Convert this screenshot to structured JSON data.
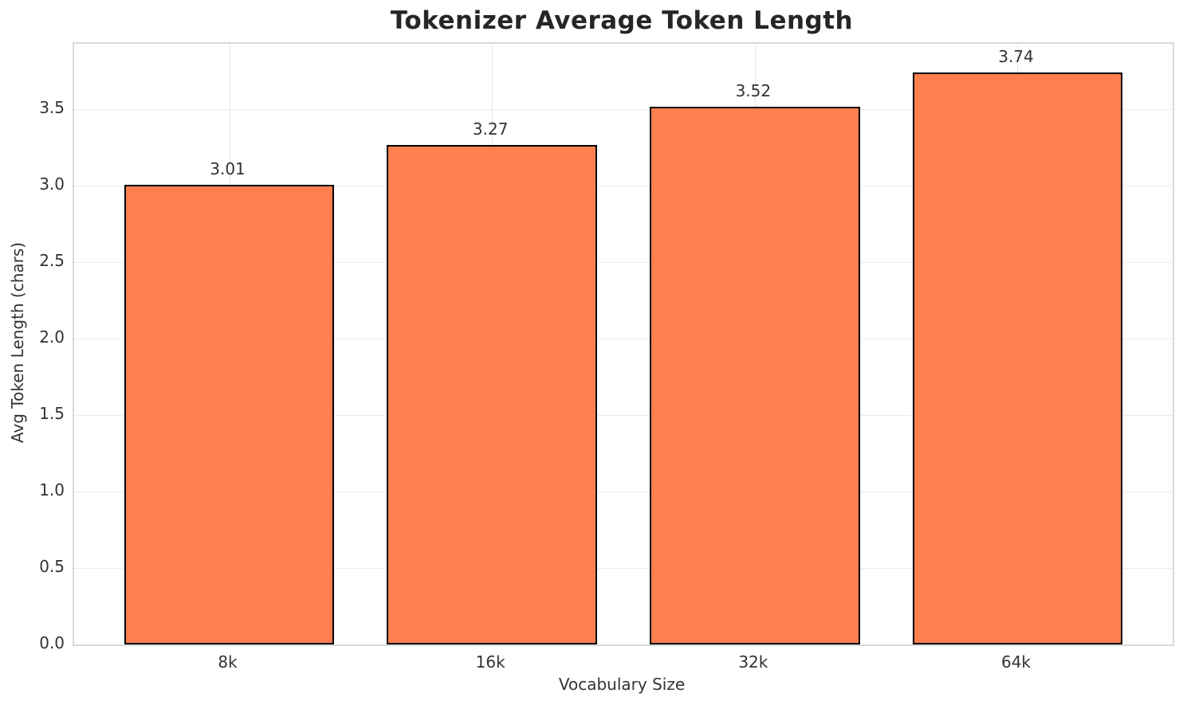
{
  "chart_data": {
    "type": "bar",
    "title": "Tokenizer Average Token Length",
    "xlabel": "Vocabulary Size",
    "ylabel": "Avg Token Length (chars)",
    "categories": [
      "8k",
      "16k",
      "32k",
      "64k"
    ],
    "values": [
      3.01,
      3.27,
      3.52,
      3.74
    ],
    "value_labels": [
      "3.01",
      "3.27",
      "3.52",
      "3.74"
    ],
    "ytick_values": [
      0.0,
      0.5,
      1.0,
      1.5,
      2.0,
      2.5,
      3.0,
      3.5
    ],
    "ytick_labels": [
      "0.0",
      "0.5",
      "1.0",
      "1.5",
      "2.0",
      "2.5",
      "3.0",
      "3.5"
    ],
    "ylim": [
      0,
      3.93
    ],
    "grid": true,
    "legend": "none",
    "bar_width_fraction": 0.8,
    "colors": {
      "bar_fill": "#FF7F50",
      "bar_edge": "#000000",
      "grid_h": "#ebebeb",
      "grid_v": "#e6e6e6",
      "spine": "#d9d9d9",
      "text": "#333333",
      "title_text": "#262626",
      "background": "#ffffff"
    }
  }
}
